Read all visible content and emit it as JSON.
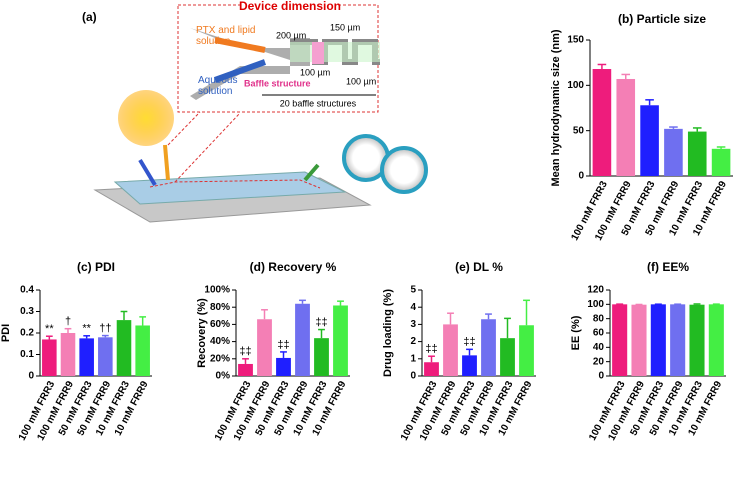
{
  "panel_a": {
    "label": "(a)",
    "title": "Device dimension",
    "inlet_1": [
      "PTX and lipid",
      "solution"
    ],
    "inlet_2": [
      "Aqueous",
      "solution"
    ],
    "dims": [
      "200 µm",
      "150 µm",
      "100 µm",
      "100 µm"
    ],
    "baffle": "Baffle structure",
    "baffle_count": "20 baffle structures"
  },
  "chart_data": [
    {
      "type": "bar",
      "title": "(b) Particle size",
      "ylabel": "Mean hydrodynamic size (nm)",
      "categories": [
        "100 mM FRR3",
        "100 mM FRR9",
        "50 mM FRR3",
        "50 mM FRR9",
        "10 mM FRR3",
        "10 mM FRR9"
      ],
      "values": [
        118,
        107,
        78,
        52,
        49,
        30
      ],
      "errors": [
        5,
        5,
        6,
        2,
        4,
        2
      ],
      "colors": [
        "#ee1c7c",
        "#f47fb5",
        "#1f1fff",
        "#6f6ff0",
        "#22bb22",
        "#44ee44"
      ],
      "ylim": [
        0,
        150
      ],
      "yticks": [
        0,
        50,
        100,
        150
      ]
    },
    {
      "type": "bar",
      "title": "(c) PDI",
      "ylabel": "PDI",
      "categories": [
        "100 mM FRR3",
        "100 mM FRR9",
        "50 mM FRR3",
        "50 mM FRR9",
        "10 mM FRR3",
        "10 mM FRR9"
      ],
      "values": [
        0.17,
        0.2,
        0.175,
        0.18,
        0.26,
        0.235
      ],
      "errors": [
        0.015,
        0.02,
        0.012,
        0.008,
        0.04,
        0.04
      ],
      "markers": [
        "**",
        "†",
        "**",
        "††",
        null,
        null
      ],
      "colors": [
        "#ee1c7c",
        "#f47fb5",
        "#1f1fff",
        "#6f6ff0",
        "#22bb22",
        "#44ee44"
      ],
      "ylim": [
        0,
        0.4
      ],
      "yticks": [
        0,
        0.1,
        0.2,
        0.3,
        0.4
      ]
    },
    {
      "type": "bar",
      "title": "(d) Recovery %",
      "ylabel": "Recovery (%)",
      "categories": [
        "100 mM FRR3",
        "100 mM FRR9",
        "50 mM FRR3",
        "50 mM FRR9",
        "10 mM FRR3",
        "10 mM FRR9"
      ],
      "values": [
        14,
        66,
        21,
        84,
        44,
        82
      ],
      "errors": [
        6,
        11,
        7,
        4,
        10,
        5
      ],
      "markers": [
        "‡‡",
        null,
        "‡‡",
        null,
        "‡‡",
        null
      ],
      "colors": [
        "#ee1c7c",
        "#f47fb5",
        "#1f1fff",
        "#6f6ff0",
        "#22bb22",
        "#44ee44"
      ],
      "ylim": [
        0,
        100
      ],
      "yticks": [
        {
          "value": 0,
          "label": "0%"
        },
        {
          "value": 20,
          "label": "20%"
        },
        {
          "value": 40,
          "label": "40%"
        },
        {
          "value": 60,
          "label": "60%"
        },
        {
          "value": 80,
          "label": "80%"
        },
        {
          "value": 100,
          "label": "100%"
        }
      ]
    },
    {
      "type": "bar",
      "title": "(e) DL %",
      "ylabel": "Drug loading (%)",
      "categories": [
        "100 mM FRR3",
        "100 mM FRR9",
        "50 mM FRR3",
        "50 mM FRR9",
        "10 mM FRR3",
        "10 mM FRR9"
      ],
      "values": [
        0.8,
        3.0,
        1.2,
        3.3,
        2.2,
        2.95
      ],
      "errors": [
        0.35,
        0.65,
        0.35,
        0.3,
        1.15,
        1.45
      ],
      "markers": [
        "‡‡",
        null,
        "‡‡",
        null,
        null,
        null
      ],
      "colors": [
        "#ee1c7c",
        "#f47fb5",
        "#1f1fff",
        "#6f6ff0",
        "#22bb22",
        "#44ee44"
      ],
      "ylim": [
        0,
        5
      ],
      "yticks": [
        0,
        1,
        2,
        3,
        4,
        5
      ]
    },
    {
      "type": "bar",
      "title": "(f) EE%",
      "ylabel": "EE (%)",
      "categories": [
        "100 mM FRR3",
        "100 mM FRR9",
        "50 mM FRR3",
        "50 mM FRR9",
        "10 mM FRR3",
        "10 mM FRR9"
      ],
      "values": [
        100,
        99.5,
        100,
        100,
        99.5,
        100
      ],
      "errors": [
        0.3,
        0.3,
        0.2,
        0.2,
        1,
        0.3
      ],
      "colors": [
        "#ee1c7c",
        "#f47fb5",
        "#1f1fff",
        "#6f6ff0",
        "#22bb22",
        "#44ee44"
      ],
      "ylim": [
        0,
        120
      ],
      "yticks": [
        0,
        20,
        40,
        60,
        80,
        100,
        120
      ]
    }
  ]
}
